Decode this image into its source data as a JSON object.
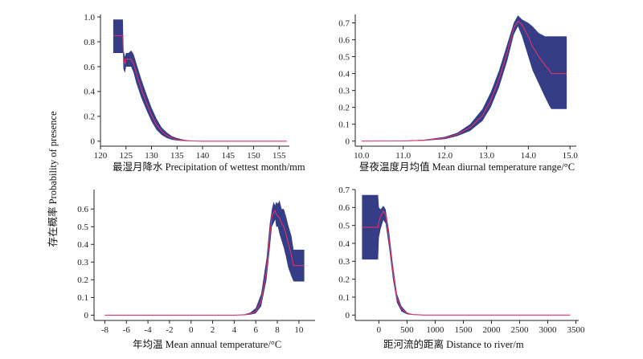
{
  "y_label": "存在概率 Probability of presence",
  "colors": {
    "band": "#343d86",
    "line": "#e0336a",
    "axis": "#222222"
  },
  "chart_data": [
    {
      "type": "area",
      "id": "p1",
      "xlabel": "最湿月降水 Precipitation of wettest month/mm",
      "xlim": [
        120,
        157
      ],
      "ylim": [
        -0.04,
        1.02
      ],
      "xticks": [
        120,
        125,
        130,
        135,
        140,
        145,
        150,
        155
      ],
      "xticklabels": [
        "120",
        "125",
        "130",
        "135",
        "140",
        "145",
        "150",
        "155"
      ],
      "yticks": [
        0,
        0.2,
        0.4,
        0.6,
        0.8,
        1.0
      ],
      "yticklabels": [
        "0",
        "0.2",
        "0.4",
        "0.6",
        "0.8",
        "1.0"
      ],
      "x": [
        122.5,
        124.4,
        124.5,
        124.8,
        125.0,
        125.5,
        126.0,
        126.5,
        127.0,
        128.0,
        129.0,
        130.0,
        131.0,
        132.0,
        133.0,
        134.0,
        135.0,
        136.0,
        137.0,
        138.0,
        140.0,
        145.0,
        150.0,
        156.5
      ],
      "upper": [
        0.98,
        0.98,
        0.74,
        0.68,
        0.71,
        0.71,
        0.73,
        0.7,
        0.63,
        0.5,
        0.38,
        0.27,
        0.18,
        0.11,
        0.07,
        0.04,
        0.025,
        0.015,
        0.008,
        0.004,
        0.001,
        0,
        0,
        0
      ],
      "lower": [
        0.71,
        0.71,
        0.58,
        0.55,
        0.6,
        0.6,
        0.6,
        0.55,
        0.47,
        0.35,
        0.25,
        0.16,
        0.09,
        0.05,
        0.025,
        0.012,
        0.005,
        0.002,
        0.001,
        0,
        0,
        0,
        0,
        0
      ],
      "mean": [
        0.85,
        0.85,
        0.67,
        0.62,
        0.66,
        0.66,
        0.66,
        0.62,
        0.55,
        0.42,
        0.31,
        0.21,
        0.13,
        0.08,
        0.045,
        0.025,
        0.013,
        0.007,
        0.004,
        0.002,
        0,
        0,
        0,
        0
      ]
    },
    {
      "type": "area",
      "id": "p2",
      "xlabel": "昼夜温度月均值 Mean diurnal temperature range/°C",
      "xlim": [
        9.85,
        15.15
      ],
      "ylim": [
        -0.03,
        0.75
      ],
      "xticks": [
        10,
        11,
        12,
        13,
        14,
        15
      ],
      "xticklabels": [
        "10.0",
        "11.0",
        "12.0",
        "13.0",
        "14.0",
        "15.0"
      ],
      "yticks": [
        0,
        0.1,
        0.2,
        0.3,
        0.4,
        0.5,
        0.6,
        0.7
      ],
      "yticklabels": [
        "0",
        "0.1",
        "0.2",
        "0.3",
        "0.4",
        "0.5",
        "0.6",
        "0.7"
      ],
      "x": [
        10.0,
        11.0,
        11.5,
        12.0,
        12.3,
        12.6,
        12.9,
        13.1,
        13.3,
        13.5,
        13.65,
        13.75,
        13.85,
        14.0,
        14.1,
        14.25,
        14.4,
        14.5,
        14.55,
        14.7,
        14.92
      ],
      "upper": [
        0,
        0.002,
        0.008,
        0.025,
        0.05,
        0.1,
        0.19,
        0.29,
        0.42,
        0.58,
        0.7,
        0.745,
        0.72,
        0.7,
        0.68,
        0.64,
        0.62,
        0.62,
        0.62,
        0.62,
        0.62
      ],
      "lower": [
        0,
        0,
        0.002,
        0.012,
        0.03,
        0.06,
        0.12,
        0.2,
        0.32,
        0.48,
        0.63,
        0.68,
        0.62,
        0.5,
        0.42,
        0.34,
        0.26,
        0.21,
        0.19,
        0.19,
        0.19
      ],
      "mean": [
        0,
        0.001,
        0.005,
        0.018,
        0.04,
        0.08,
        0.15,
        0.24,
        0.37,
        0.53,
        0.67,
        0.71,
        0.69,
        0.62,
        0.56,
        0.5,
        0.45,
        0.42,
        0.4,
        0.4,
        0.4
      ]
    },
    {
      "type": "area",
      "id": "p3",
      "xlabel": "年均温 Mean annual temperature/°C",
      "xlim": [
        -9,
        11.5
      ],
      "ylim": [
        -0.03,
        0.71
      ],
      "xticks": [
        -8,
        -6,
        -4,
        -2,
        0,
        2,
        4,
        6,
        8,
        10
      ],
      "xticklabels": [
        "-8",
        "-6",
        "-4",
        "-2",
        "0",
        "2",
        "4",
        "6",
        "8",
        "10"
      ],
      "yticks": [
        0,
        0.1,
        0.2,
        0.3,
        0.4,
        0.5,
        0.6
      ],
      "yticklabels": [
        "0",
        "0.1",
        "0.2",
        "0.3",
        "0.4",
        "0.5",
        "0.6"
      ],
      "x": [
        -8.0,
        4.0,
        5.0,
        5.5,
        6.0,
        6.5,
        7.0,
        7.3,
        7.5,
        7.65,
        7.8,
        7.9,
        8.05,
        8.2,
        8.4,
        8.6,
        8.8,
        9.0,
        9.3,
        9.5,
        10.0,
        10.5
      ],
      "upper": [
        0,
        0,
        0.005,
        0.015,
        0.04,
        0.12,
        0.32,
        0.52,
        0.6,
        0.64,
        0.62,
        0.64,
        0.63,
        0.65,
        0.6,
        0.6,
        0.56,
        0.51,
        0.45,
        0.37,
        0.37,
        0.37
      ],
      "lower": [
        0,
        0,
        0,
        0.003,
        0.01,
        0.05,
        0.2,
        0.38,
        0.5,
        0.52,
        0.54,
        0.5,
        0.5,
        0.46,
        0.42,
        0.38,
        0.33,
        0.27,
        0.22,
        0.19,
        0.19,
        0.19
      ],
      "mean": [
        0,
        0,
        0.002,
        0.008,
        0.02,
        0.08,
        0.25,
        0.45,
        0.56,
        0.58,
        0.59,
        0.57,
        0.56,
        0.55,
        0.52,
        0.5,
        0.46,
        0.41,
        0.34,
        0.28,
        0.28,
        0.28
      ]
    },
    {
      "type": "area",
      "id": "p4",
      "xlabel": "距河流的距离 Distance to river/m",
      "xlim": [
        -420,
        3550
      ],
      "ylim": [
        -0.03,
        0.7
      ],
      "xticks": [
        0,
        500,
        1000,
        1500,
        2000,
        2500,
        3000,
        3500
      ],
      "xticklabels": [
        "0",
        "500",
        "1000",
        "1500",
        "2000",
        "2500",
        "3000",
        "3500"
      ],
      "yticks": [
        0,
        0.1,
        0.2,
        0.3,
        0.4,
        0.5,
        0.6,
        0.7
      ],
      "yticklabels": [
        "0",
        "0.1",
        "0.2",
        "0.3",
        "0.4",
        "0.5",
        "0.6",
        "0.7"
      ],
      "x": [
        -300,
        -15,
        0,
        30,
        80,
        120,
        180,
        250,
        320,
        400,
        500,
        600,
        800,
        1000,
        3400
      ],
      "upper": [
        0.67,
        0.67,
        0.6,
        0.59,
        0.61,
        0.59,
        0.47,
        0.28,
        0.12,
        0.05,
        0.015,
        0.004,
        0,
        0,
        0
      ],
      "lower": [
        0.31,
        0.31,
        0.43,
        0.48,
        0.53,
        0.51,
        0.38,
        0.2,
        0.07,
        0.02,
        0.004,
        0.001,
        0,
        0,
        0
      ],
      "mean": [
        0.49,
        0.49,
        0.52,
        0.55,
        0.58,
        0.56,
        0.43,
        0.24,
        0.095,
        0.035,
        0.01,
        0.003,
        0,
        0,
        0
      ]
    }
  ]
}
